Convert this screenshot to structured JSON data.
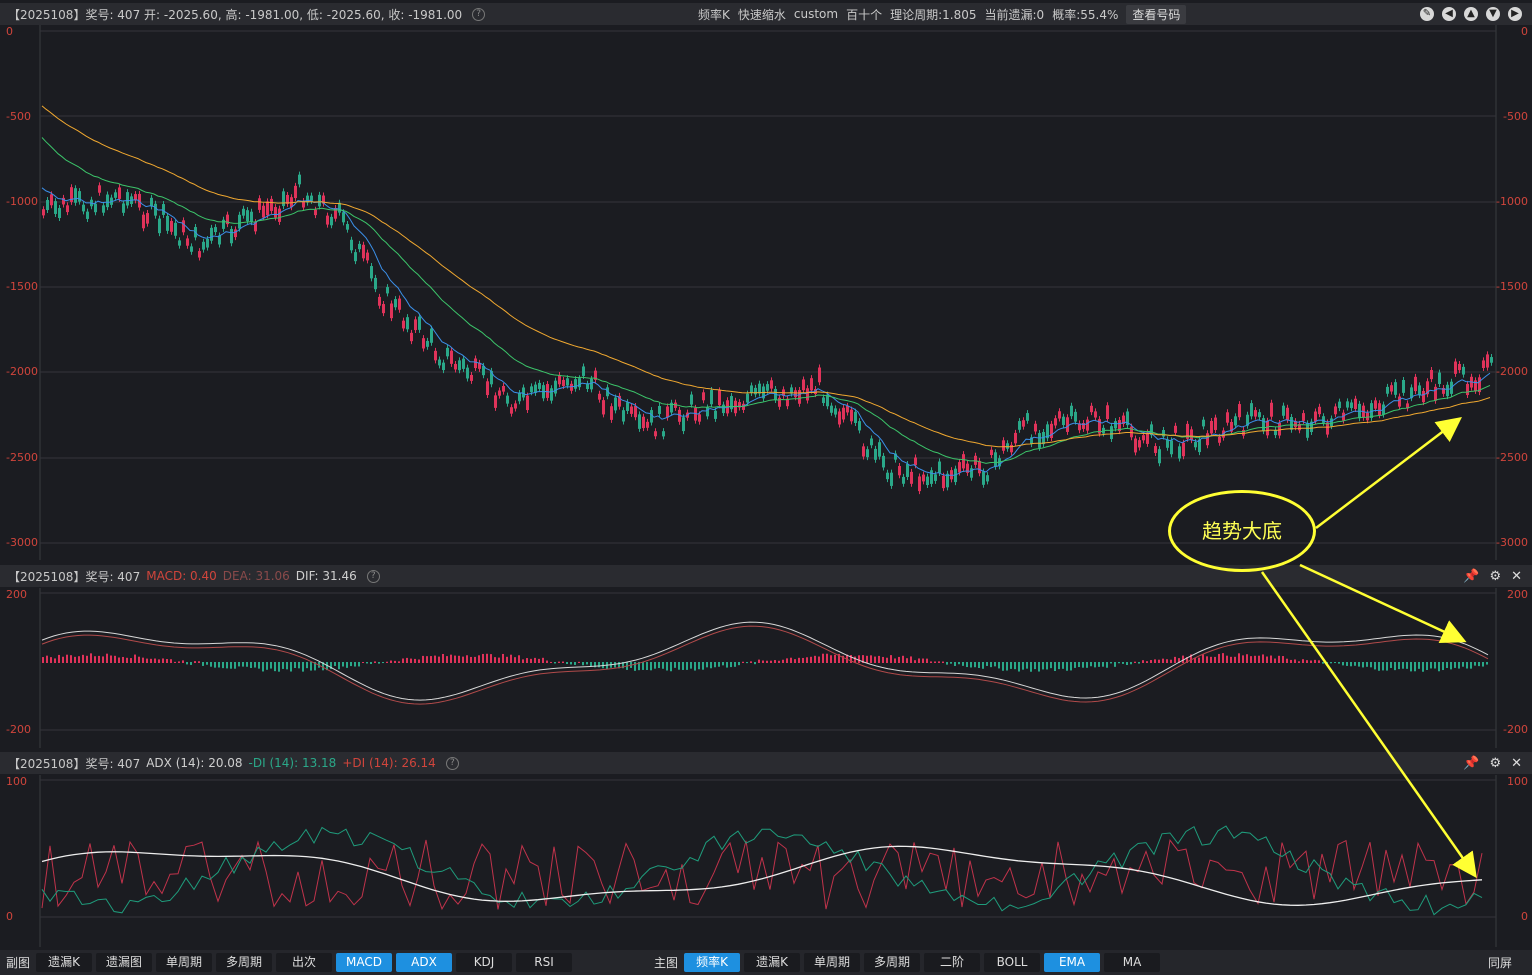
{
  "main_header": {
    "info": "【2025108】奖号: 407  开: -2025.60, 高: -1981.00, 低: -2025.60, 收: -1981.00",
    "center_items": [
      "频率K",
      "快速缩水",
      "custom",
      "百十个",
      "理论周期:1.805",
      "当前遗漏:0",
      "概率:55.4%"
    ],
    "lookup_button": "查看号码"
  },
  "main_chart": {
    "y_ticks": [
      "0",
      "-500",
      "-1000",
      "-1500",
      "-2000",
      "-2500",
      "-3000"
    ]
  },
  "macd_header": {
    "prefix": "【2025108】奖号: 407",
    "macd": "MACD: 0.40",
    "dea": "DEA: 31.06",
    "dif": "DIF: 31.46"
  },
  "macd_chart": {
    "y_ticks": [
      "200",
      "-200"
    ]
  },
  "adx_header": {
    "prefix": "【2025108】奖号: 407",
    "adx": "ADX (14): 20.08",
    "minus_di": "-DI (14): 13.18",
    "plus_di": "+DI (14): 26.14"
  },
  "adx_chart": {
    "y_ticks": [
      "100",
      "0"
    ]
  },
  "annotation": {
    "text": "趋势大底"
  },
  "bottom_bar": {
    "left_label": "副图",
    "left_tabs": [
      "遗漏K",
      "遗漏图",
      "单周期",
      "多周期",
      "出次",
      "MACD",
      "ADX",
      "KDJ",
      "RSI"
    ],
    "left_active": [
      "MACD",
      "ADX"
    ],
    "main_label": "主图",
    "main_tabs": [
      "频率K",
      "遗漏K",
      "单周期",
      "多周期",
      "二阶",
      "BOLL",
      "EMA",
      "MA"
    ],
    "main_active": [
      "频率K",
      "EMA"
    ],
    "fullscreen": "同屏"
  },
  "colors": {
    "up": "#e0335a",
    "down": "#2aa889",
    "ema_short": "#3b8fe8",
    "ema_mid": "#3cc46a",
    "ema_long": "#f0a830",
    "annotation": "#ffff33"
  }
}
